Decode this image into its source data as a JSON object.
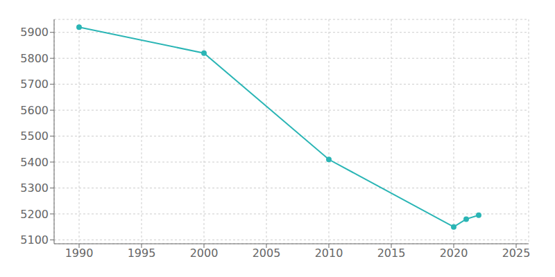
{
  "chart_data": {
    "type": "line",
    "x": [
      1990,
      2000,
      2010,
      2020,
      2021,
      2022
    ],
    "values": [
      5920,
      5820,
      5410,
      5150,
      5180,
      5195
    ],
    "color": "#2ab5b5",
    "marker": "circle",
    "xlim": [
      1988,
      2026
    ],
    "ylim": [
      5085,
      5950
    ],
    "xticks": [
      1990,
      1995,
      2000,
      2005,
      2010,
      2015,
      2020,
      2025
    ],
    "yticks": [
      5100,
      5200,
      5300,
      5400,
      5500,
      5600,
      5700,
      5800,
      5900
    ],
    "grid": true
  }
}
